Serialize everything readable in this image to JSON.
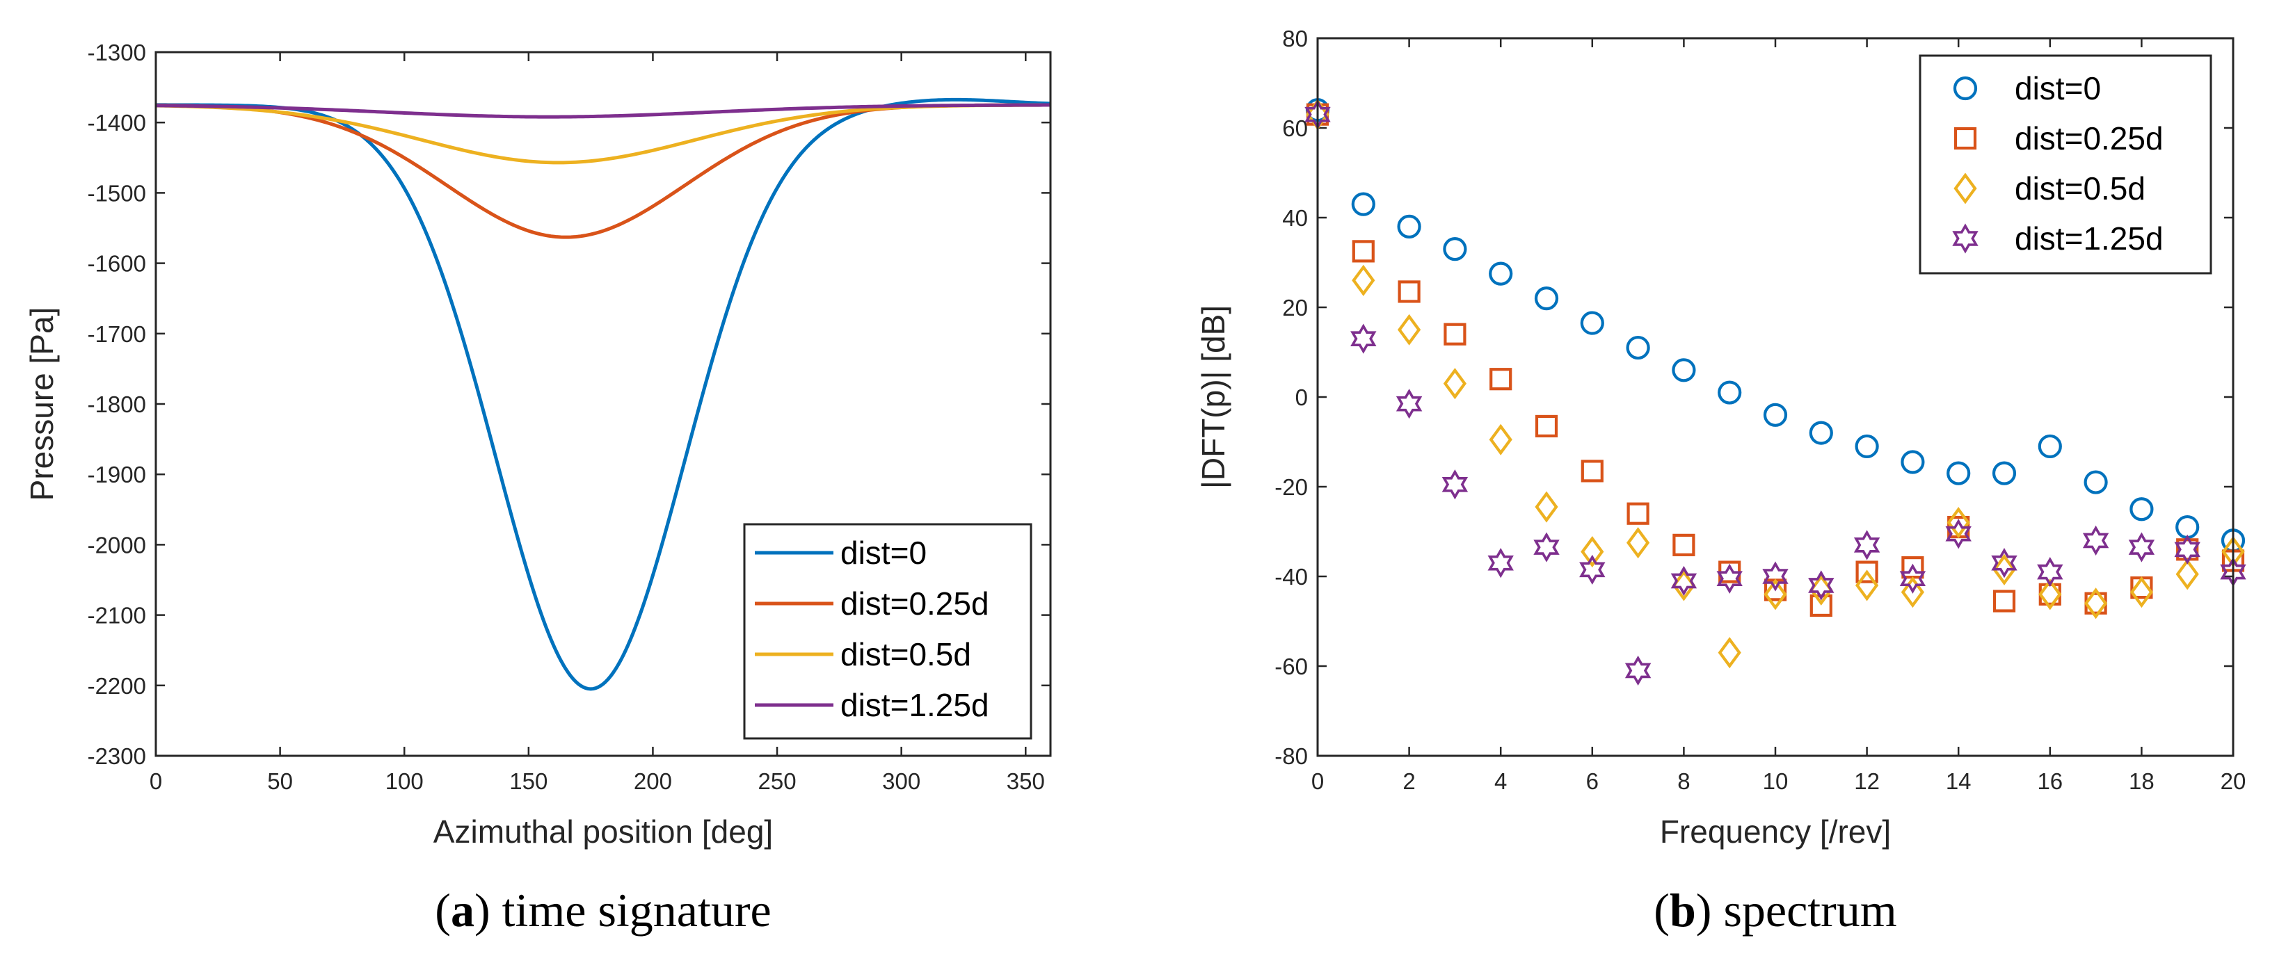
{
  "colors": {
    "dist0": "#0072BD",
    "dist025": "#D95319",
    "dist05": "#EDB120",
    "dist125": "#7E2F8E"
  },
  "chart_data": [
    {
      "id": "a",
      "type": "line",
      "caption_letter": "a",
      "caption_text": "time signature",
      "xlabel": "Azimuthal position [deg]",
      "ylabel": "Pressure [Pa]",
      "xlim": [
        0,
        360
      ],
      "ylim": [
        -2300,
        -1300
      ],
      "xticks": [
        "0",
        "50",
        "100",
        "150",
        "200",
        "250",
        "300",
        "350"
      ],
      "yticks": [
        "-1300",
        "-1400",
        "-1500",
        "-1600",
        "-1700",
        "-1800",
        "-1900",
        "-2000",
        "-2100",
        "-2200",
        "-2300"
      ],
      "legend_position": "bottom-right",
      "series": [
        {
          "name": "dist=0",
          "color": "#0072BD",
          "baseline": -1375,
          "amplitude": -830,
          "center": 175,
          "sigma": 38,
          "overshoot": 8
        },
        {
          "name": "dist=0.25d",
          "color": "#D95319",
          "baseline": -1375,
          "amplitude": -188,
          "center": 165,
          "sigma": 48,
          "overshoot": 0
        },
        {
          "name": "dist=0.5d",
          "color": "#EDB120",
          "baseline": -1375,
          "amplitude": -82,
          "center": 162,
          "sigma": 55,
          "overshoot": 0
        },
        {
          "name": "dist=1.25d",
          "color": "#7E2F8E",
          "baseline": -1375,
          "amplitude": -17,
          "center": 158,
          "sigma": 65,
          "overshoot": 0
        }
      ]
    },
    {
      "id": "b",
      "type": "scatter",
      "caption_letter": "b",
      "caption_text": "spectrum",
      "xlabel": "Frequency [/rev]",
      "ylabel": "|DFT(p)| [dB]",
      "xlim": [
        0,
        20
      ],
      "ylim": [
        -80,
        80
      ],
      "xticks": [
        "0",
        "2",
        "4",
        "6",
        "8",
        "10",
        "12",
        "14",
        "16",
        "18",
        "20"
      ],
      "yticks": [
        "80",
        "60",
        "40",
        "20",
        "0",
        "-20",
        "-40",
        "-60",
        "-80"
      ],
      "legend_position": "top-right",
      "x": [
        0,
        1,
        2,
        3,
        4,
        5,
        6,
        7,
        8,
        9,
        10,
        11,
        12,
        13,
        14,
        15,
        16,
        17,
        18,
        19,
        20
      ],
      "series": [
        {
          "name": "dist=0",
          "marker": "circle",
          "color": "#0072BD",
          "values": [
            64,
            43,
            38,
            33,
            27.5,
            22,
            16.5,
            11,
            6,
            1,
            -4,
            -8,
            -11,
            -14.5,
            -17,
            -17,
            -11,
            -19,
            -25,
            -29,
            -32
          ]
        },
        {
          "name": "dist=0.25d",
          "marker": "square",
          "color": "#D95319",
          "values": [
            63,
            32.5,
            23.5,
            14,
            4,
            -6.5,
            -16.5,
            -26,
            -33,
            -39,
            -43,
            -46.5,
            -39,
            -38,
            -29,
            -45.5,
            -44,
            -46,
            -42.5,
            -34,
            -36.5
          ]
        },
        {
          "name": "dist=0.5d",
          "marker": "diamond",
          "color": "#EDB120",
          "values": [
            63,
            26,
            15,
            3,
            -9.5,
            -24.5,
            -34.5,
            -32.5,
            -42,
            -57,
            -44,
            -43,
            -42,
            -43.5,
            -28,
            -38.5,
            -44,
            -46,
            -43.5,
            -39.5,
            -34.5
          ]
        },
        {
          "name": "dist=1.25d",
          "marker": "hexagram",
          "color": "#7E2F8E",
          "values": [
            63,
            13,
            -1.5,
            -19.5,
            -37,
            -33.5,
            -38.5,
            -61,
            -41,
            -40.5,
            -40,
            -42,
            -33,
            -40.5,
            -30.5,
            -37,
            -39,
            -32,
            -33.5,
            -34,
            -39
          ]
        }
      ]
    }
  ]
}
